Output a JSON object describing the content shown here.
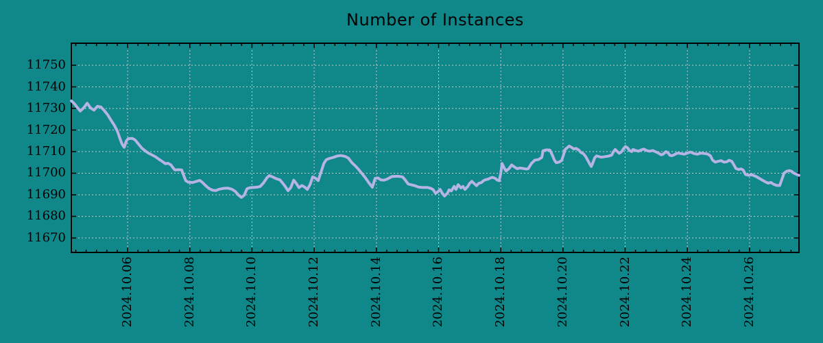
{
  "title": "Number of Instances",
  "colors": {
    "background": "#108789",
    "line": "#b6b4e4",
    "grid": "#c8cccc",
    "axis": "#000000",
    "text": "#000000"
  },
  "chart_data": {
    "type": "line",
    "title": "Number of Instances",
    "xlabel": "",
    "ylabel": "",
    "legend": "none",
    "grid": "dotted",
    "x_unit": "days since 2024-10-04 00:00",
    "xlim_days": [
      0.19,
      23.59
    ],
    "ylim": [
      11663.3,
      11760.2
    ],
    "y_ticks": [
      11750,
      11740,
      11730,
      11720,
      11710,
      11700,
      11690,
      11680,
      11670
    ],
    "minor_x_tick_days": 0.33333,
    "x_ticks": [
      {
        "d": 2,
        "label": "2024.10.06"
      },
      {
        "d": 4,
        "label": "2024.10.08"
      },
      {
        "d": 6,
        "label": "2024.10.10"
      },
      {
        "d": 8,
        "label": "2024.10.12"
      },
      {
        "d": 10,
        "label": "2024.10.14"
      },
      {
        "d": 12,
        "label": "2024.10.16"
      },
      {
        "d": 14,
        "label": "2024.10.18"
      },
      {
        "d": 16,
        "label": "2024.10.20"
      },
      {
        "d": 18,
        "label": "2024.10.22"
      },
      {
        "d": 20,
        "label": "2024.10.24"
      },
      {
        "d": 22,
        "label": "2024.10.26"
      }
    ],
    "points": [
      [
        0.19,
        11733.5
      ],
      [
        0.28,
        11732.3
      ],
      [
        0.39,
        11730.3
      ],
      [
        0.48,
        11728.8
      ],
      [
        0.59,
        11730.3
      ],
      [
        0.7,
        11732.4
      ],
      [
        0.81,
        11730.2
      ],
      [
        0.92,
        11729.2
      ],
      [
        1.03,
        11731.0
      ],
      [
        1.14,
        11730.7
      ],
      [
        1.25,
        11729.0
      ],
      [
        1.36,
        11727.0
      ],
      [
        1.47,
        11724.5
      ],
      [
        1.58,
        11722.0
      ],
      [
        1.67,
        11719.5
      ],
      [
        1.76,
        11715.8
      ],
      [
        1.82,
        11713.5
      ],
      [
        1.89,
        11712.0
      ],
      [
        1.96,
        11715.0
      ],
      [
        2.02,
        11716.0
      ],
      [
        2.15,
        11716.1
      ],
      [
        2.24,
        11715.4
      ],
      [
        2.35,
        11713.5
      ],
      [
        2.46,
        11711.6
      ],
      [
        2.57,
        11710.3
      ],
      [
        2.68,
        11709.2
      ],
      [
        2.79,
        11708.4
      ],
      [
        2.9,
        11707.6
      ],
      [
        3.01,
        11706.4
      ],
      [
        3.12,
        11705.4
      ],
      [
        3.21,
        11704.4
      ],
      [
        3.3,
        11704.6
      ],
      [
        3.39,
        11703.9
      ],
      [
        3.46,
        11702.5
      ],
      [
        3.52,
        11701.5
      ],
      [
        3.63,
        11701.6
      ],
      [
        3.74,
        11701.5
      ],
      [
        3.81,
        11698.8
      ],
      [
        3.87,
        11696.5
      ],
      [
        3.96,
        11695.8
      ],
      [
        4.09,
        11695.7
      ],
      [
        4.21,
        11696.2
      ],
      [
        4.32,
        11696.7
      ],
      [
        4.4,
        11695.8
      ],
      [
        4.51,
        11694.2
      ],
      [
        4.62,
        11692.9
      ],
      [
        4.73,
        11692.1
      ],
      [
        4.84,
        11692.0
      ],
      [
        4.95,
        11692.6
      ],
      [
        5.09,
        11693.0
      ],
      [
        5.22,
        11693.1
      ],
      [
        5.35,
        11692.6
      ],
      [
        5.46,
        11691.6
      ],
      [
        5.57,
        11689.8
      ],
      [
        5.66,
        11688.8
      ],
      [
        5.75,
        11689.8
      ],
      [
        5.84,
        11692.8
      ],
      [
        5.93,
        11693.3
      ],
      [
        6.04,
        11693.4
      ],
      [
        6.15,
        11693.5
      ],
      [
        6.26,
        11693.8
      ],
      [
        6.37,
        11695.5
      ],
      [
        6.48,
        11697.9
      ],
      [
        6.56,
        11698.9
      ],
      [
        6.67,
        11698.2
      ],
      [
        6.79,
        11697.4
      ],
      [
        6.9,
        11696.9
      ],
      [
        6.98,
        11695.5
      ],
      [
        7.07,
        11693.8
      ],
      [
        7.16,
        11691.9
      ],
      [
        7.25,
        11693.4
      ],
      [
        7.34,
        11696.8
      ],
      [
        7.42,
        11695.4
      ],
      [
        7.51,
        11693.3
      ],
      [
        7.6,
        11694.3
      ],
      [
        7.69,
        11693.6
      ],
      [
        7.78,
        11692.5
      ],
      [
        7.87,
        11694.8
      ],
      [
        7.95,
        11698.3
      ],
      [
        8.04,
        11697.7
      ],
      [
        8.13,
        11696.6
      ],
      [
        8.22,
        11700.5
      ],
      [
        8.31,
        11704.5
      ],
      [
        8.39,
        11706.3
      ],
      [
        8.5,
        11706.9
      ],
      [
        8.61,
        11707.3
      ],
      [
        8.75,
        11708.0
      ],
      [
        8.86,
        11708.2
      ],
      [
        8.99,
        11707.8
      ],
      [
        9.1,
        11707.0
      ],
      [
        9.21,
        11704.9
      ],
      [
        9.32,
        11703.4
      ],
      [
        9.43,
        11701.7
      ],
      [
        9.54,
        11699.8
      ],
      [
        9.65,
        11697.8
      ],
      [
        9.76,
        11695.5
      ],
      [
        9.87,
        11693.5
      ],
      [
        9.96,
        11697.6
      ],
      [
        10.05,
        11697.8
      ],
      [
        10.14,
        11696.9
      ],
      [
        10.25,
        11696.8
      ],
      [
        10.36,
        11697.4
      ],
      [
        10.51,
        11698.5
      ],
      [
        10.69,
        11698.6
      ],
      [
        10.84,
        11698.3
      ],
      [
        10.93,
        11696.8
      ],
      [
        11.02,
        11695.0
      ],
      [
        11.13,
        11694.6
      ],
      [
        11.24,
        11694.2
      ],
      [
        11.35,
        11693.6
      ],
      [
        11.48,
        11693.4
      ],
      [
        11.64,
        11693.4
      ],
      [
        11.75,
        11693.0
      ],
      [
        11.83,
        11692.3
      ],
      [
        11.9,
        11690.7
      ],
      [
        11.97,
        11691.3
      ],
      [
        12.05,
        11692.5
      ],
      [
        12.12,
        11690.7
      ],
      [
        12.19,
        11689.4
      ],
      [
        12.28,
        11690.7
      ],
      [
        12.34,
        11692.3
      ],
      [
        12.41,
        11691.8
      ],
      [
        12.5,
        11693.9
      ],
      [
        12.56,
        11692.5
      ],
      [
        12.63,
        11694.7
      ],
      [
        12.72,
        11693.2
      ],
      [
        12.78,
        11693.9
      ],
      [
        12.85,
        11692.5
      ],
      [
        12.94,
        11693.9
      ],
      [
        13.0,
        11695.3
      ],
      [
        13.07,
        11696.2
      ],
      [
        13.16,
        11695.0
      ],
      [
        13.22,
        11694.2
      ],
      [
        13.29,
        11695.3
      ],
      [
        13.38,
        11695.7
      ],
      [
        13.44,
        11696.5
      ],
      [
        13.51,
        11697.0
      ],
      [
        13.6,
        11697.3
      ],
      [
        13.67,
        11697.8
      ],
      [
        13.73,
        11698.1
      ],
      [
        13.82,
        11697.6
      ],
      [
        13.89,
        11696.8
      ],
      [
        13.95,
        11696.5
      ],
      [
        14.0,
        11700.0
      ],
      [
        14.04,
        11704.5
      ],
      [
        14.11,
        11702.4
      ],
      [
        14.17,
        11701.0
      ],
      [
        14.26,
        11702.1
      ],
      [
        14.35,
        11703.8
      ],
      [
        14.44,
        11702.9
      ],
      [
        14.53,
        11702.1
      ],
      [
        14.61,
        11702.4
      ],
      [
        14.72,
        11702.2
      ],
      [
        14.83,
        11701.9
      ],
      [
        14.88,
        11702.1
      ],
      [
        14.99,
        11704.6
      ],
      [
        15.1,
        11706.1
      ],
      [
        15.21,
        11706.3
      ],
      [
        15.32,
        11707.3
      ],
      [
        15.36,
        11710.4
      ],
      [
        15.47,
        11710.8
      ],
      [
        15.58,
        11710.7
      ],
      [
        15.65,
        11708.6
      ],
      [
        15.72,
        11706.2
      ],
      [
        15.78,
        11704.9
      ],
      [
        15.87,
        11705.1
      ],
      [
        15.96,
        11705.9
      ],
      [
        16.02,
        11708.6
      ],
      [
        16.07,
        11711.0
      ],
      [
        16.13,
        11711.7
      ],
      [
        16.2,
        11712.6
      ],
      [
        16.27,
        11712.0
      ],
      [
        16.35,
        11711.2
      ],
      [
        16.42,
        11711.5
      ],
      [
        16.51,
        11710.7
      ],
      [
        16.57,
        11709.7
      ],
      [
        16.66,
        11709.0
      ],
      [
        16.73,
        11707.7
      ],
      [
        16.8,
        11705.9
      ],
      [
        16.86,
        11704.3
      ],
      [
        16.91,
        11703.1
      ],
      [
        16.97,
        11705.1
      ],
      [
        17.02,
        11707.1
      ],
      [
        17.08,
        11708.0
      ],
      [
        17.15,
        11707.7
      ],
      [
        17.24,
        11707.4
      ],
      [
        17.37,
        11707.7
      ],
      [
        17.46,
        11707.9
      ],
      [
        17.57,
        11708.4
      ],
      [
        17.61,
        11709.7
      ],
      [
        17.68,
        11711.0
      ],
      [
        17.72,
        11710.4
      ],
      [
        17.81,
        11709.2
      ],
      [
        17.88,
        11709.9
      ],
      [
        17.94,
        11711.2
      ],
      [
        18.01,
        11712.4
      ],
      [
        18.08,
        11711.7
      ],
      [
        18.14,
        11710.5
      ],
      [
        18.21,
        11710.0
      ],
      [
        18.25,
        11711.0
      ],
      [
        18.34,
        11710.5
      ],
      [
        18.43,
        11710.2
      ],
      [
        18.52,
        11710.8
      ],
      [
        18.6,
        11711.2
      ],
      [
        18.69,
        11710.5
      ],
      [
        18.78,
        11710.2
      ],
      [
        18.89,
        11710.5
      ],
      [
        18.98,
        11709.9
      ],
      [
        19.07,
        11709.3
      ],
      [
        19.16,
        11708.5
      ],
      [
        19.22,
        11708.8
      ],
      [
        19.31,
        11710.0
      ],
      [
        19.38,
        11709.4
      ],
      [
        19.44,
        11708.3
      ],
      [
        19.51,
        11708.1
      ],
      [
        19.57,
        11708.5
      ],
      [
        19.68,
        11709.3
      ],
      [
        19.79,
        11709.1
      ],
      [
        19.9,
        11708.8
      ],
      [
        19.99,
        11709.3
      ],
      [
        20.1,
        11709.8
      ],
      [
        20.21,
        11709.1
      ],
      [
        20.32,
        11708.8
      ],
      [
        20.43,
        11709.3
      ],
      [
        20.54,
        11709.1
      ],
      [
        20.65,
        11708.9
      ],
      [
        20.74,
        11708.1
      ],
      [
        20.81,
        11706.1
      ],
      [
        20.9,
        11705.1
      ],
      [
        20.98,
        11705.5
      ],
      [
        21.09,
        11705.8
      ],
      [
        21.18,
        11705.1
      ],
      [
        21.27,
        11705.3
      ],
      [
        21.34,
        11706.0
      ],
      [
        21.43,
        11705.5
      ],
      [
        21.49,
        11704.0
      ],
      [
        21.56,
        11702.2
      ],
      [
        21.65,
        11701.7
      ],
      [
        21.73,
        11702.0
      ],
      [
        21.8,
        11701.4
      ],
      [
        21.87,
        11699.4
      ],
      [
        21.98,
        11699.0
      ],
      [
        22.07,
        11699.4
      ],
      [
        22.13,
        11698.9
      ],
      [
        22.22,
        11698.4
      ],
      [
        22.31,
        11697.6
      ],
      [
        22.42,
        11696.7
      ],
      [
        22.51,
        11696.0
      ],
      [
        22.6,
        11695.4
      ],
      [
        22.69,
        11695.7
      ],
      [
        22.77,
        11694.9
      ],
      [
        22.88,
        11694.3
      ],
      [
        22.97,
        11694.3
      ],
      [
        23.04,
        11697.2
      ],
      [
        23.11,
        11700.0
      ],
      [
        23.19,
        11700.9
      ],
      [
        23.28,
        11701.2
      ],
      [
        23.35,
        11700.9
      ],
      [
        23.41,
        11700.2
      ],
      [
        23.52,
        11699.4
      ],
      [
        23.59,
        11699.0
      ]
    ]
  }
}
